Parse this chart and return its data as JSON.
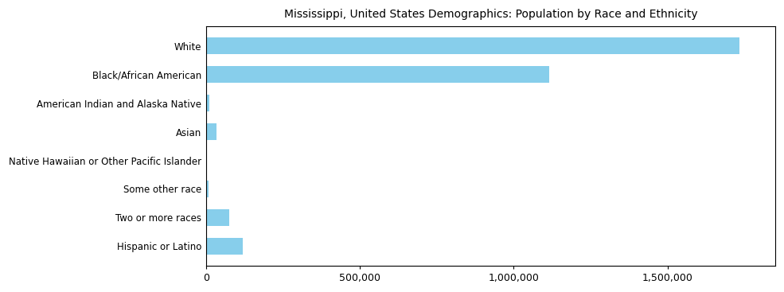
{
  "categories": [
    "White",
    "Black/African American",
    "American Indian and Alaska Native",
    "Asian",
    "Native Hawaiian or Other Pacific Islander",
    "Some other race",
    "Two or more races",
    "Hispanic or Latino"
  ],
  "values": [
    1734870,
    1115261,
    10000,
    35000,
    3000,
    8000,
    75000,
    120000
  ],
  "bar_color": "#87CEEB",
  "title": "Mississippi, United States Demographics: Population by Race and Ethnicity",
  "title_fontsize": 10,
  "xlim": [
    0,
    1850000
  ],
  "xticks": [
    0,
    500000,
    1000000,
    1500000
  ],
  "xticklabels": [
    "0",
    "500,000",
    "1,000,000",
    "1,500,000"
  ],
  "bar_height": 0.6,
  "ylabel_fontsize": 8.5,
  "xlabel_fontsize": 9,
  "background_color": "#ffffff"
}
